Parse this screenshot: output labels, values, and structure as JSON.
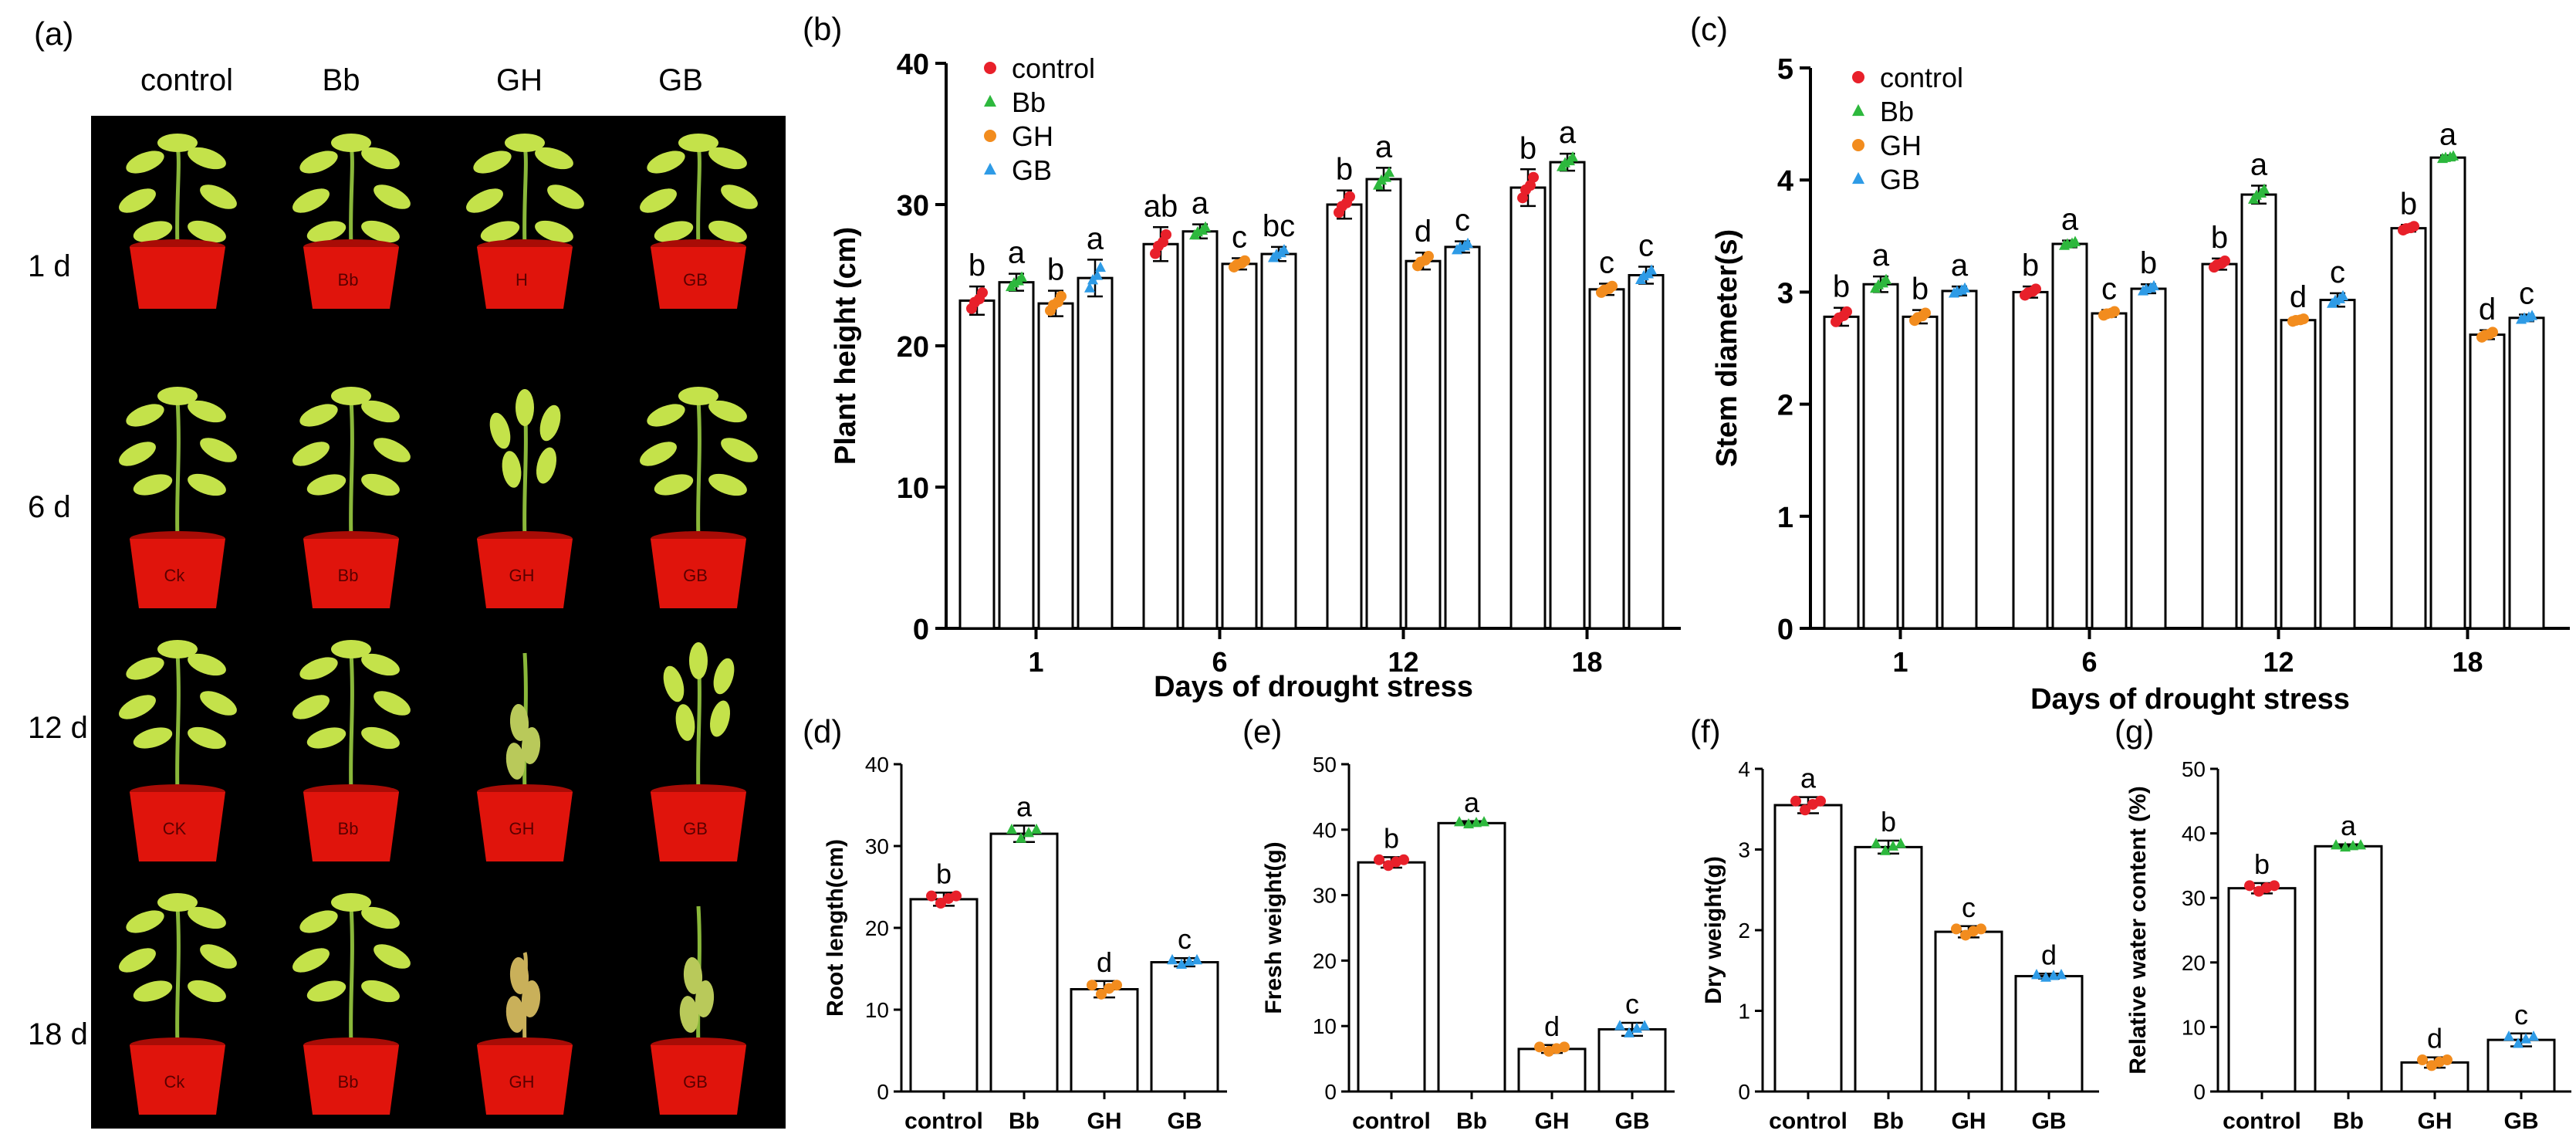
{
  "photo_panel": {
    "label": "(a)",
    "columns": [
      "control",
      "Bb",
      "GH",
      "GB"
    ],
    "rows": [
      "1 d",
      "6 d",
      "12 d",
      "18 d"
    ],
    "pot_labels": [
      [
        "",
        "Bb",
        "H",
        "GB"
      ],
      [
        "Ck",
        "Bb",
        "GH",
        "GB"
      ],
      [
        "CK",
        "Bb",
        "GH",
        "GB"
      ],
      [
        "Ck",
        "Bb",
        "GH",
        "GB"
      ]
    ],
    "plant_condition": [
      [
        "healthy",
        "healthy",
        "healthy",
        "healthy"
      ],
      [
        "healthy",
        "healthy",
        "wilting",
        "healthy"
      ],
      [
        "healthy",
        "healthy",
        "wilted",
        "wilting"
      ],
      [
        "healthy",
        "healthy",
        "dead",
        "wilted"
      ]
    ]
  },
  "chart_data": [
    {
      "id": "b",
      "label": "(b)",
      "type": "bar",
      "ylabel": "Plant height (cm)",
      "xlabel": "Days of drought stress",
      "ylim": [
        0,
        40
      ],
      "yticks": [
        0,
        10,
        20,
        30,
        40
      ],
      "categories": [
        "1",
        "6",
        "12",
        "18"
      ],
      "series": [
        {
          "name": "control",
          "values": [
            23.2,
            27.2,
            30.0,
            31.2
          ],
          "errors": [
            1.0,
            1.2,
            1.0,
            1.3
          ],
          "letters": [
            "b",
            "ab",
            "b",
            "b"
          ]
        },
        {
          "name": "Bb",
          "values": [
            24.5,
            28.1,
            31.8,
            33.0
          ],
          "errors": [
            0.6,
            0.5,
            0.8,
            0.6
          ],
          "letters": [
            "a",
            "a",
            "a",
            "a"
          ]
        },
        {
          "name": "GH",
          "values": [
            23.0,
            25.8,
            26.0,
            24.0
          ],
          "errors": [
            0.9,
            0.4,
            0.6,
            0.4
          ],
          "letters": [
            "b",
            "c",
            "d",
            "c"
          ]
        },
        {
          "name": "GB",
          "values": [
            24.8,
            26.5,
            27.0,
            25.0
          ],
          "errors": [
            1.3,
            0.5,
            0.4,
            0.6
          ],
          "letters": [
            "a",
            "bc",
            "c",
            "c"
          ]
        }
      ]
    },
    {
      "id": "c",
      "label": "(c)",
      "type": "bar",
      "ylabel": "Stem diameter(s)",
      "xlabel": "Days of drought stress",
      "ylim": [
        0,
        5
      ],
      "yticks": [
        0,
        1,
        2,
        3,
        4,
        5
      ],
      "categories": [
        "1",
        "6",
        "12",
        "18"
      ],
      "series": [
        {
          "name": "control",
          "values": [
            2.78,
            3.0,
            3.25,
            3.57
          ],
          "errors": [
            0.08,
            0.05,
            0.05,
            0.03
          ],
          "letters": [
            "b",
            "b",
            "b",
            "b"
          ]
        },
        {
          "name": "Bb",
          "values": [
            3.07,
            3.43,
            3.87,
            4.2
          ],
          "errors": [
            0.07,
            0.03,
            0.08,
            0.02
          ],
          "letters": [
            "a",
            "a",
            "a",
            "a"
          ]
        },
        {
          "name": "GH",
          "values": [
            2.78,
            2.81,
            2.75,
            2.62
          ],
          "errors": [
            0.06,
            0.03,
            0.02,
            0.04
          ],
          "letters": [
            "b",
            "c",
            "d",
            "d"
          ]
        },
        {
          "name": "GB",
          "values": [
            3.01,
            3.03,
            2.93,
            2.77
          ],
          "errors": [
            0.04,
            0.04,
            0.06,
            0.03
          ],
          "letters": [
            "a",
            "b",
            "c",
            "c"
          ]
        }
      ]
    },
    {
      "id": "d",
      "label": "(d)",
      "type": "bar",
      "ylabel": "Root length(cm)",
      "xlabel": "",
      "ylim": [
        0,
        40
      ],
      "yticks": [
        0,
        10,
        20,
        30,
        40
      ],
      "categories": [
        "control",
        "Bb",
        "GH",
        "GB"
      ],
      "values": [
        23.5,
        31.5,
        12.5,
        15.8
      ],
      "errors": [
        0.8,
        1.0,
        1.0,
        0.5
      ],
      "letters": [
        "b",
        "a",
        "d",
        "c"
      ]
    },
    {
      "id": "e",
      "label": "(e)",
      "type": "bar",
      "ylabel": "Fresh weight(g)",
      "xlabel": "",
      "ylim": [
        0,
        50
      ],
      "yticks": [
        0,
        10,
        20,
        30,
        40,
        50
      ],
      "categories": [
        "control",
        "Bb",
        "GH",
        "GB"
      ],
      "values": [
        35.0,
        41.0,
        6.5,
        9.5
      ],
      "errors": [
        0.8,
        0.3,
        0.6,
        1.0
      ],
      "letters": [
        "b",
        "a",
        "d",
        "c"
      ]
    },
    {
      "id": "f",
      "label": "(f)",
      "type": "bar",
      "ylabel": "Dry weight(g)",
      "xlabel": "",
      "ylim": [
        0,
        4
      ],
      "yticks": [
        0,
        1,
        2,
        3,
        4
      ],
      "categories": [
        "control",
        "Bb",
        "GH",
        "GB"
      ],
      "values": [
        3.55,
        3.03,
        1.98,
        1.43
      ],
      "errors": [
        0.1,
        0.08,
        0.07,
        0.03
      ],
      "letters": [
        "a",
        "b",
        "c",
        "d"
      ]
    },
    {
      "id": "g",
      "label": "(g)",
      "type": "bar",
      "ylabel": "Relative water content (%)",
      "xlabel": "",
      "ylim": [
        0,
        50
      ],
      "yticks": [
        0,
        10,
        20,
        30,
        40,
        50
      ],
      "categories": [
        "control",
        "Bb",
        "GH",
        "GB"
      ],
      "values": [
        31.5,
        38.0,
        4.5,
        8.0
      ],
      "errors": [
        0.8,
        0.3,
        0.8,
        1.0
      ],
      "letters": [
        "b",
        "a",
        "d",
        "c"
      ]
    }
  ],
  "colors": {
    "control": "#e8202a",
    "Bb": "#2db83d",
    "GH": "#f28c1e",
    "GB": "#2e9be6",
    "bar_fill": "#ffffff",
    "bar_stroke": "#000000",
    "photo_bg": "#000000",
    "pot": "#e0140c",
    "leaf": "#c4e24a",
    "stem": "#8ab83a",
    "dead_leaf": "#c9b05a"
  },
  "marker_shapes": {
    "control": "circle",
    "Bb": "triangle-up",
    "GH": "circle",
    "GB": "triangle-up"
  }
}
